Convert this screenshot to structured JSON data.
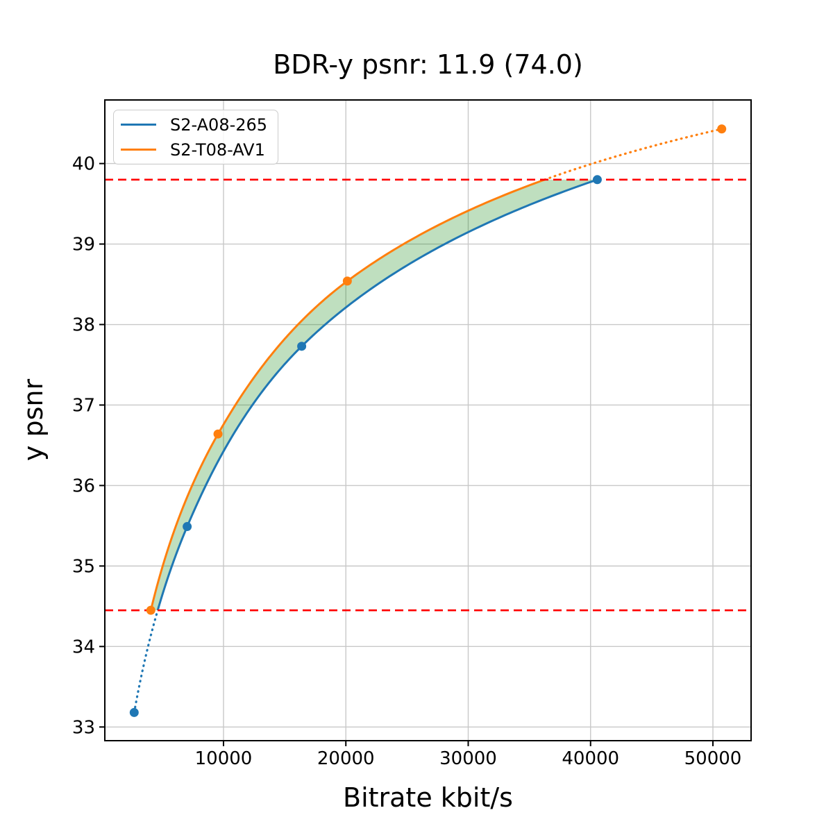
{
  "chart_data": {
    "type": "line",
    "title": "BDR-y psnr: 11.9 (74.0)",
    "xlabel": "Bitrate kbit/s",
    "ylabel": "y psnr",
    "xlim": [
      300,
      53120
    ],
    "ylim": [
      32.83,
      40.79
    ],
    "xticks": [
      10000,
      20000,
      30000,
      40000,
      50000
    ],
    "yticks": [
      33,
      34,
      35,
      36,
      37,
      38,
      39,
      40
    ],
    "grid": true,
    "grid_color": "#c8c8c8",
    "spine_color": "#000000",
    "legend_position": "upper-left",
    "series": [
      {
        "name": "S2-A08-265",
        "color": "#1f77b4",
        "points": [
          [
            2700,
            33.18
          ],
          [
            7030,
            35.49
          ],
          [
            16390,
            37.73
          ],
          [
            40550,
            39.8
          ]
        ]
      },
      {
        "name": "S2-T08-AV1",
        "color": "#ff7f0e",
        "points": [
          [
            4060,
            34.45
          ],
          [
            9550,
            36.64
          ],
          [
            20120,
            38.54
          ],
          [
            50720,
            40.43
          ]
        ]
      }
    ],
    "overlap_psnr": [
      34.45,
      39.8
    ],
    "hlines": [
      34.45,
      39.8
    ],
    "hline_color": "#ff0000",
    "fill_color": "#008000",
    "fill_alpha": 0.25,
    "interpolation": "pchip-on-log-bitrate",
    "outside_overlap_style": "dotted"
  }
}
